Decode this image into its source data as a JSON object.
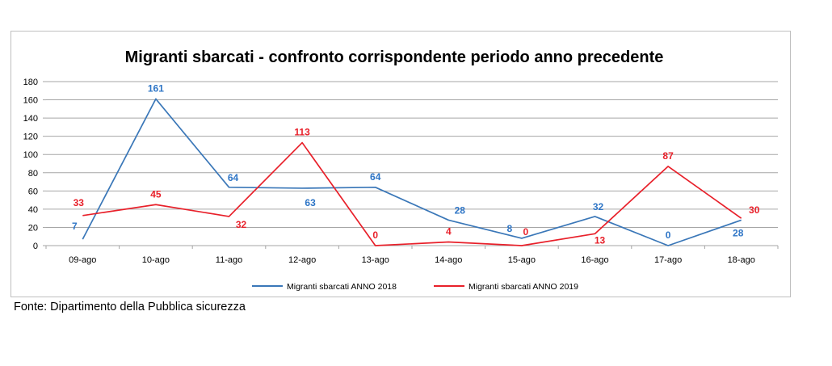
{
  "chart_data": {
    "type": "line",
    "title": "Migranti sbarcati - confronto corrispondente periodo anno precedente",
    "categories": [
      "09-ago",
      "10-ago",
      "11-ago",
      "12-ago",
      "13-ago",
      "14-ago",
      "15-ago",
      "16-ago",
      "17-ago",
      "18-ago"
    ],
    "series": [
      {
        "name": "Migranti sbarcati ANNO 2018",
        "color": "#3a77b8",
        "label_color": "#2e75c6",
        "values": [
          7,
          161,
          64,
          63,
          64,
          28,
          8,
          32,
          0,
          28
        ]
      },
      {
        "name": "Migranti sbarcati ANNO 2019",
        "color": "#e8202a",
        "label_color": "#e8202a",
        "values": [
          33,
          45,
          32,
          113,
          0,
          4,
          0,
          13,
          87,
          30
        ]
      }
    ],
    "ylim": [
      0,
      180
    ],
    "yticks": [
      0,
      20,
      40,
      60,
      80,
      100,
      120,
      140,
      160,
      180
    ],
    "grid": true,
    "legend": "bottom",
    "xlabel": "",
    "ylabel": ""
  },
  "source": "Fonte: Dipartimento della Pubblica sicurezza"
}
